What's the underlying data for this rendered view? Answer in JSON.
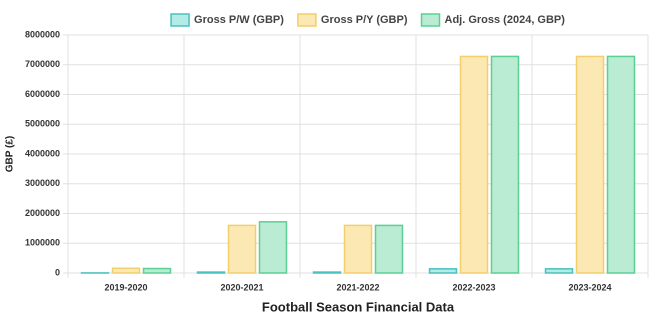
{
  "chart_data": {
    "type": "bar",
    "x_label": "Football Season Financial Data",
    "y_label": "GBP (£)",
    "categories": [
      "2019-2020",
      "2020-2021",
      "2021-2022",
      "2022-2023",
      "2023-2024"
    ],
    "series": [
      {
        "name": "Gross P/W (GBP)",
        "color": "#4bc0c0",
        "fill": "#b3ebe6",
        "values": [
          3000,
          31000,
          31000,
          140000,
          140000
        ]
      },
      {
        "name": "Gross P/Y (GBP)",
        "color": "#f2cf6b",
        "fill": "#fbe8b2",
        "values": [
          160000,
          1600000,
          1600000,
          7280000,
          7280000
        ]
      },
      {
        "name": "Adj. Gross (2024, GBP)",
        "color": "#5ccf95",
        "fill": "#b9ecd2",
        "values": [
          150000,
          1720000,
          1600000,
          7280000,
          7280000
        ]
      }
    ],
    "ylim": [
      0,
      8000000
    ],
    "yticks": [
      0,
      1000000,
      2000000,
      3000000,
      4000000,
      5000000,
      6000000,
      7000000,
      8000000
    ],
    "grid": true,
    "legend": "top"
  }
}
